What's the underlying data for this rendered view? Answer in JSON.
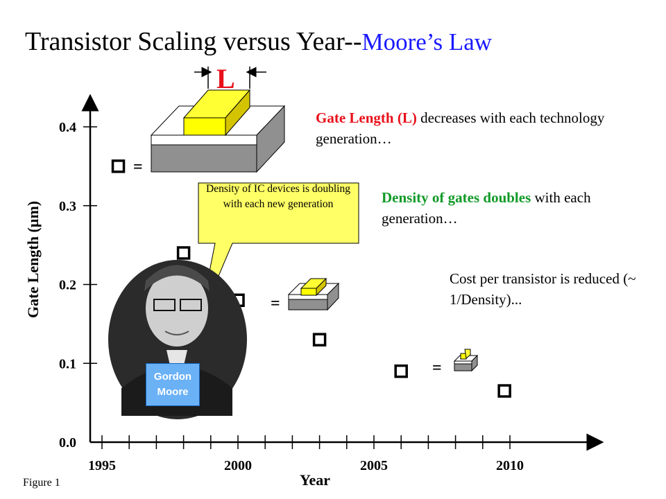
{
  "title": {
    "main": "Transistor Scaling versus Year--",
    "sub": "Moore’s Law"
  },
  "notes": {
    "gate_length_highlight": "Gate Length (L)",
    "gate_length_rest": " decreases with each technology generation…",
    "density_highlight": "Density of gates doubles",
    "density_rest": " with each generation…",
    "cost": "Cost per transistor is reduced (~ 1/Density)..."
  },
  "callout": {
    "text": "Density of IC devices is doubling with each new generation"
  },
  "portrait": {
    "name_line1": "Gordon",
    "name_line2": "Moore"
  },
  "gate_label": "L",
  "equals_sign": "=",
  "figure_caption": "Figure 1",
  "chart_data": {
    "type": "scatter",
    "xlabel": "Year",
    "ylabel": "Gate Length (µm)",
    "x_ticks": [
      "1995",
      "2000",
      "2005",
      "2010"
    ],
    "y_ticks": [
      "0.0",
      "0.1",
      "0.2",
      "0.3",
      "0.4"
    ],
    "xlim": [
      1995,
      2010
    ],
    "ylim": [
      0.0,
      0.4
    ],
    "points": [
      {
        "year": 1995.6,
        "gate_length": 0.35
      },
      {
        "year": 1998.0,
        "gate_length": 0.24
      },
      {
        "year": 2000.0,
        "gate_length": 0.18
      },
      {
        "year": 2003.0,
        "gate_length": 0.13
      },
      {
        "year": 2006.0,
        "gate_length": 0.09
      },
      {
        "year": 2009.8,
        "gate_length": 0.065
      }
    ],
    "colors": {
      "marker_stroke": "#000000",
      "axis": "#000000"
    }
  }
}
